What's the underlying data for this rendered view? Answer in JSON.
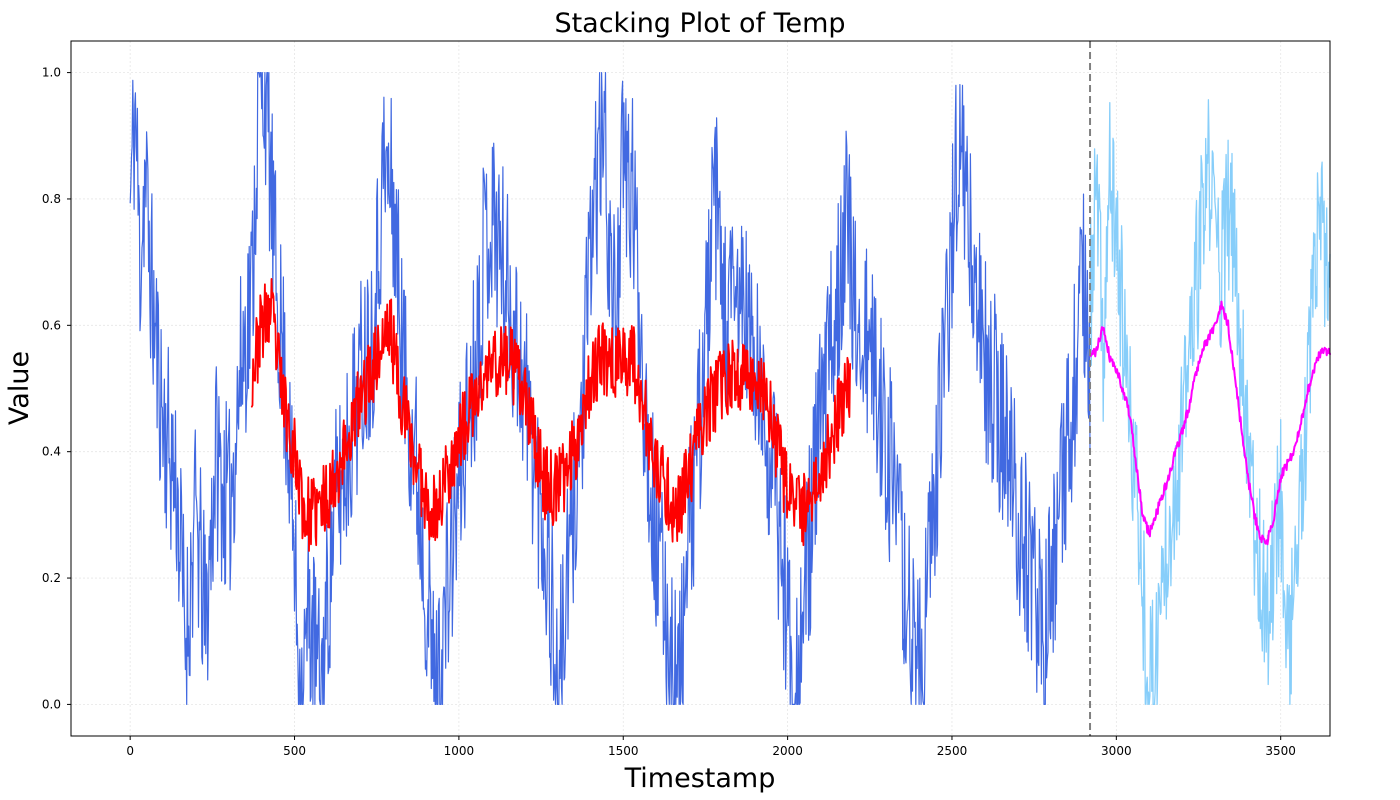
{
  "chart_data": {
    "type": "line",
    "title": "Stacking Plot of Temp",
    "xlabel": "Timestamp",
    "ylabel": "Value",
    "xlim": [
      -180,
      3650
    ],
    "ylim": [
      -0.05,
      1.05
    ],
    "x_ticks": [
      0,
      500,
      1000,
      1500,
      2000,
      2500,
      3000,
      3500
    ],
    "x_tick_labels": [
      "0",
      "500",
      "1000",
      "1500",
      "2000",
      "2500",
      "3000",
      "3500"
    ],
    "y_ticks": [
      0.0,
      0.2,
      0.4,
      0.6,
      0.8,
      1.0
    ],
    "y_tick_labels": [
      "0.0",
      "0.2",
      "0.4",
      "0.6",
      "0.8",
      "1.0"
    ],
    "grid": true,
    "vline": {
      "x": 2920,
      "style": "dashed",
      "color": "#808080"
    },
    "series": [
      {
        "role": "history",
        "color": "#4169e1",
        "x_range": [
          0,
          2920
        ],
        "seasonal_period": 365,
        "waypoints": [
          [
            0,
            0.79
          ],
          [
            15,
            0.95
          ],
          [
            30,
            0.7
          ],
          [
            45,
            0.84
          ],
          [
            70,
            0.62
          ],
          [
            100,
            0.45
          ],
          [
            140,
            0.35
          ],
          [
            170,
            0.1
          ],
          [
            200,
            0.3
          ],
          [
            230,
            0.12
          ],
          [
            260,
            0.4
          ],
          [
            300,
            0.3
          ],
          [
            340,
            0.55
          ],
          [
            370,
            0.65
          ],
          [
            390,
            0.96
          ],
          [
            410,
            1.0
          ],
          [
            440,
            0.7
          ],
          [
            480,
            0.45
          ],
          [
            520,
            0.0
          ],
          [
            545,
            0.15
          ],
          [
            580,
            0.01
          ],
          [
            620,
            0.3
          ],
          [
            660,
            0.4
          ],
          [
            700,
            0.52
          ],
          [
            740,
            0.6
          ],
          [
            770,
            0.85
          ],
          [
            800,
            0.8
          ],
          [
            830,
            0.55
          ],
          [
            870,
            0.38
          ],
          [
            900,
            0.2
          ],
          [
            930,
            0.0
          ],
          [
            960,
            0.15
          ],
          [
            1000,
            0.35
          ],
          [
            1050,
            0.55
          ],
          [
            1080,
            0.75
          ],
          [
            1110,
            0.77
          ],
          [
            1150,
            0.65
          ],
          [
            1200,
            0.5
          ],
          [
            1240,
            0.35
          ],
          [
            1280,
            0.18
          ],
          [
            1300,
            0.0
          ],
          [
            1340,
            0.25
          ],
          [
            1380,
            0.5
          ],
          [
            1410,
            0.8
          ],
          [
            1440,
            0.92
          ],
          [
            1470,
            0.6
          ],
          [
            1500,
            0.85
          ],
          [
            1530,
            0.8
          ],
          [
            1570,
            0.45
          ],
          [
            1600,
            0.25
          ],
          [
            1640,
            0.1
          ],
          [
            1670,
            0.01
          ],
          [
            1700,
            0.25
          ],
          [
            1740,
            0.5
          ],
          [
            1780,
            0.8
          ],
          [
            1810,
            0.6
          ],
          [
            1860,
            0.65
          ],
          [
            1910,
            0.5
          ],
          [
            1960,
            0.35
          ],
          [
            2000,
            0.15
          ],
          [
            2030,
            0.03
          ],
          [
            2060,
            0.22
          ],
          [
            2100,
            0.45
          ],
          [
            2140,
            0.6
          ],
          [
            2180,
            0.8
          ],
          [
            2200,
            0.62
          ],
          [
            2250,
            0.55
          ],
          [
            2300,
            0.43
          ],
          [
            2340,
            0.25
          ],
          [
            2380,
            0.1
          ],
          [
            2410,
            0.06
          ],
          [
            2450,
            0.35
          ],
          [
            2490,
            0.65
          ],
          [
            2520,
            0.92
          ],
          [
            2560,
            0.7
          ],
          [
            2600,
            0.55
          ],
          [
            2650,
            0.45
          ],
          [
            2700,
            0.3
          ],
          [
            2740,
            0.2
          ],
          [
            2780,
            0.11
          ],
          [
            2820,
            0.25
          ],
          [
            2860,
            0.45
          ],
          [
            2900,
            0.65
          ],
          [
            2920,
            0.55
          ]
        ]
      },
      {
        "role": "smoothed-history",
        "color": "#ff0000",
        "x_range": [
          370,
          2190
        ],
        "waypoints": [
          [
            370,
            0.52
          ],
          [
            400,
            0.6
          ],
          [
            430,
            0.62
          ],
          [
            460,
            0.5
          ],
          [
            500,
            0.4
          ],
          [
            530,
            0.3
          ],
          [
            560,
            0.3
          ],
          [
            600,
            0.33
          ],
          [
            650,
            0.4
          ],
          [
            700,
            0.48
          ],
          [
            750,
            0.55
          ],
          [
            790,
            0.6
          ],
          [
            820,
            0.5
          ],
          [
            860,
            0.4
          ],
          [
            900,
            0.33
          ],
          [
            930,
            0.3
          ],
          [
            960,
            0.36
          ],
          [
            1000,
            0.42
          ],
          [
            1050,
            0.48
          ],
          [
            1100,
            0.54
          ],
          [
            1150,
            0.55
          ],
          [
            1190,
            0.5
          ],
          [
            1230,
            0.42
          ],
          [
            1260,
            0.35
          ],
          [
            1300,
            0.34
          ],
          [
            1350,
            0.4
          ],
          [
            1400,
            0.52
          ],
          [
            1440,
            0.55
          ],
          [
            1480,
            0.54
          ],
          [
            1530,
            0.55
          ],
          [
            1560,
            0.48
          ],
          [
            1590,
            0.38
          ],
          [
            1630,
            0.34
          ],
          [
            1660,
            0.3
          ],
          [
            1700,
            0.36
          ],
          [
            1740,
            0.45
          ],
          [
            1790,
            0.5
          ],
          [
            1840,
            0.52
          ],
          [
            1890,
            0.52
          ],
          [
            1930,
            0.5
          ],
          [
            1960,
            0.42
          ],
          [
            2000,
            0.34
          ],
          [
            2040,
            0.3
          ],
          [
            2080,
            0.34
          ],
          [
            2120,
            0.4
          ],
          [
            2160,
            0.47
          ],
          [
            2190,
            0.5
          ]
        ]
      },
      {
        "role": "forecast",
        "color": "#87cefa",
        "x_range": [
          2920,
          3650
        ],
        "waypoints": [
          [
            2920,
            0.62
          ],
          [
            2940,
            0.82
          ],
          [
            2960,
            0.55
          ],
          [
            2980,
            0.83
          ],
          [
            3000,
            0.75
          ],
          [
            3020,
            0.6
          ],
          [
            3040,
            0.45
          ],
          [
            3060,
            0.35
          ],
          [
            3080,
            0.2
          ],
          [
            3100,
            0.02
          ],
          [
            3120,
            0.08
          ],
          [
            3140,
            0.2
          ],
          [
            3160,
            0.3
          ],
          [
            3180,
            0.35
          ],
          [
            3200,
            0.42
          ],
          [
            3220,
            0.55
          ],
          [
            3240,
            0.65
          ],
          [
            3260,
            0.75
          ],
          [
            3280,
            0.84
          ],
          [
            3300,
            0.77
          ],
          [
            3320,
            0.68
          ],
          [
            3340,
            0.78
          ],
          [
            3360,
            0.72
          ],
          [
            3380,
            0.55
          ],
          [
            3400,
            0.45
          ],
          [
            3420,
            0.3
          ],
          [
            3440,
            0.2
          ],
          [
            3460,
            0.14
          ],
          [
            3480,
            0.25
          ],
          [
            3500,
            0.35
          ],
          [
            3520,
            0.08
          ],
          [
            3540,
            0.18
          ],
          [
            3560,
            0.3
          ],
          [
            3580,
            0.45
          ],
          [
            3600,
            0.65
          ],
          [
            3620,
            0.78
          ],
          [
            3650,
            0.6
          ]
        ]
      },
      {
        "role": "forecast-smoothed",
        "color": "#ff00ff",
        "x_range": [
          2920,
          3650
        ],
        "waypoints": [
          [
            2920,
            0.55
          ],
          [
            2940,
            0.56
          ],
          [
            2960,
            0.6
          ],
          [
            2980,
            0.55
          ],
          [
            3000,
            0.53
          ],
          [
            3020,
            0.5
          ],
          [
            3040,
            0.46
          ],
          [
            3060,
            0.38
          ],
          [
            3080,
            0.3
          ],
          [
            3100,
            0.27
          ],
          [
            3120,
            0.3
          ],
          [
            3140,
            0.33
          ],
          [
            3160,
            0.36
          ],
          [
            3180,
            0.4
          ],
          [
            3200,
            0.43
          ],
          [
            3220,
            0.47
          ],
          [
            3240,
            0.52
          ],
          [
            3260,
            0.56
          ],
          [
            3280,
            0.58
          ],
          [
            3300,
            0.6
          ],
          [
            3320,
            0.63
          ],
          [
            3340,
            0.6
          ],
          [
            3360,
            0.52
          ],
          [
            3380,
            0.44
          ],
          [
            3400,
            0.36
          ],
          [
            3420,
            0.3
          ],
          [
            3440,
            0.26
          ],
          [
            3460,
            0.26
          ],
          [
            3480,
            0.3
          ],
          [
            3500,
            0.36
          ],
          [
            3520,
            0.38
          ],
          [
            3540,
            0.4
          ],
          [
            3560,
            0.44
          ],
          [
            3580,
            0.49
          ],
          [
            3600,
            0.53
          ],
          [
            3620,
            0.555
          ],
          [
            3650,
            0.56
          ]
        ]
      }
    ]
  }
}
